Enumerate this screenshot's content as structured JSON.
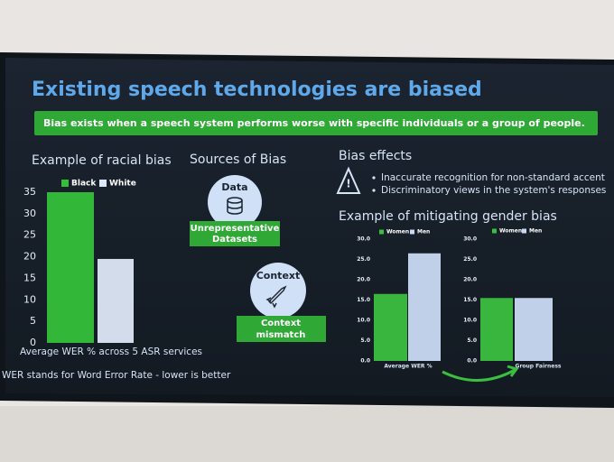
{
  "slide": {
    "title": "Existing speech technologies are biased",
    "banner": "Bias exists when a speech system performs worse with specific individuals or a group of people.",
    "sources_heading": "Sources of Bias",
    "sources": [
      {
        "circle": "Data",
        "label_lines": [
          "Unrepresentative",
          "Datasets"
        ]
      },
      {
        "circle": "Context",
        "label_lines": [
          "Context",
          "mismatch"
        ]
      }
    ],
    "effects_heading": "Bias effects",
    "effects": [
      "Inaccurate recognition for non-standard accent",
      "Discriminatory views in the system's responses"
    ],
    "mitigation_heading": "Example of mitigating gender bias",
    "footnote": "WER stands for Word Error Rate - lower is better"
  },
  "chart_data": [
    {
      "type": "bar",
      "title": "Example of racial bias",
      "x_label": "Average WER % across 5 ASR services",
      "series": [
        {
          "name": "Black",
          "color": "#35c03a",
          "values": [
            35
          ]
        },
        {
          "name": "White",
          "color": "#dde7f6",
          "values": [
            19.5
          ]
        }
      ],
      "ylim": [
        0,
        35
      ],
      "yticks": [
        0,
        5,
        10,
        15,
        20,
        25,
        30,
        35
      ]
    },
    {
      "type": "bar",
      "x_label": "Average WER %",
      "series": [
        {
          "name": "Women",
          "color": "#3bbf3f",
          "values": [
            16.5
          ]
        },
        {
          "name": "Men",
          "color": "#c9daf3",
          "values": [
            26.5
          ]
        }
      ],
      "ylim": [
        0,
        30
      ],
      "yticks": [
        {
          "value": 0,
          "label": "0.0"
        },
        {
          "value": 5,
          "label": "5.0"
        },
        {
          "value": 10,
          "label": "10.0"
        },
        {
          "value": 15,
          "label": "15.0"
        },
        {
          "value": 20,
          "label": "20.0"
        },
        {
          "value": 25,
          "label": "25.0"
        },
        {
          "value": 30,
          "label": "30.0"
        }
      ]
    },
    {
      "type": "bar",
      "x_label": "Group Fairness",
      "series": [
        {
          "name": "Women",
          "color": "#3bbf3f",
          "values": [
            15.5
          ]
        },
        {
          "name": "Men",
          "color": "#c9daf3",
          "values": [
            15.5
          ]
        }
      ],
      "ylim": [
        0,
        30
      ],
      "yticks": [
        {
          "value": 0,
          "label": "0.0"
        },
        {
          "value": 5,
          "label": "5.0"
        },
        {
          "value": 10,
          "label": "10.0"
        },
        {
          "value": 15,
          "label": "15.0"
        },
        {
          "value": 20,
          "label": "20.0"
        },
        {
          "value": 25,
          "label": "25.0"
        },
        {
          "value": 30,
          "label": "30.0"
        }
      ]
    }
  ]
}
